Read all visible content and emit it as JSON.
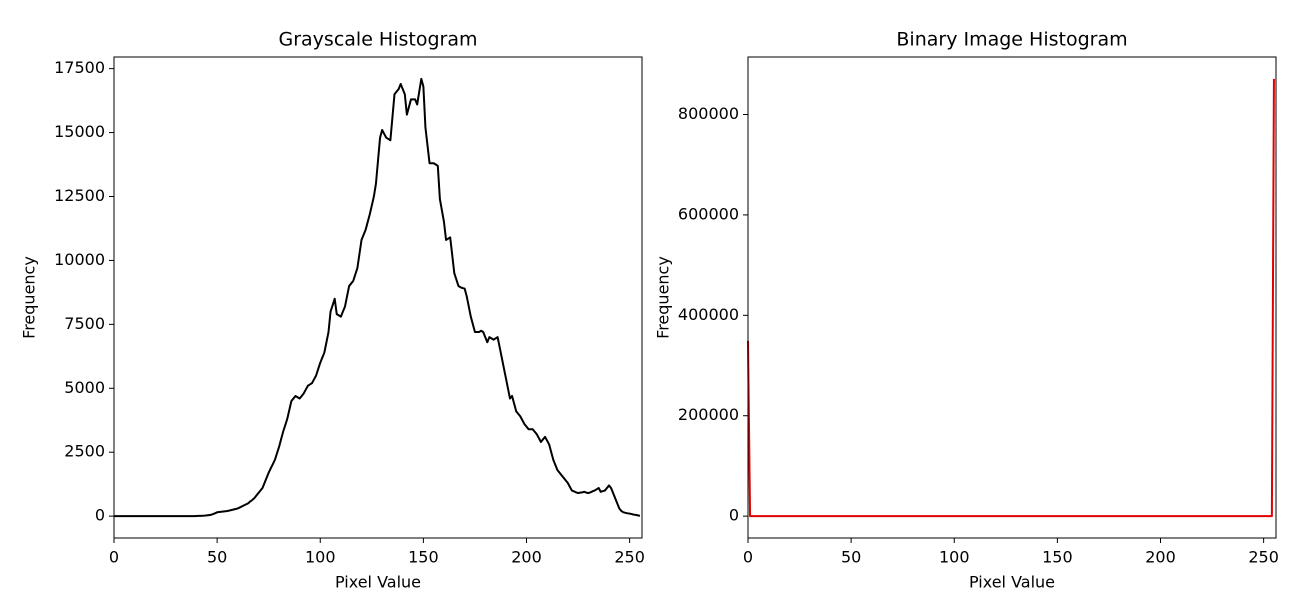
{
  "chart_data": [
    {
      "type": "line",
      "title": "Grayscale Histogram",
      "xlabel": "Pixel Value",
      "ylabel": "Frequency",
      "xlim": [
        0,
        256
      ],
      "ylim": [
        -855,
        17955
      ],
      "xticks": [
        0,
        50,
        100,
        150,
        200,
        250
      ],
      "yticks": [
        0,
        2500,
        5000,
        7500,
        10000,
        12500,
        15000,
        17500
      ],
      "x": [
        0,
        1,
        2,
        3,
        4,
        5,
        6,
        7,
        8,
        9,
        10,
        11,
        12,
        13,
        14,
        15,
        16,
        17,
        18,
        19,
        20,
        21,
        22,
        23,
        24,
        25,
        26,
        27,
        28,
        29,
        30,
        31,
        32,
        33,
        34,
        35,
        36,
        37,
        38,
        39,
        40,
        41,
        42,
        43,
        44,
        45,
        46,
        47,
        48,
        49,
        50,
        51,
        52,
        53,
        54,
        55,
        56,
        57,
        58,
        59,
        60,
        61,
        62,
        63,
        64,
        65,
        66,
        67,
        68,
        69,
        70,
        71,
        72,
        73,
        74,
        75,
        76,
        77,
        78,
        79,
        80,
        81,
        82,
        83,
        84,
        85,
        86,
        87,
        88,
        89,
        90,
        91,
        92,
        93,
        94,
        95,
        96,
        97,
        98,
        99,
        100,
        101,
        102,
        103,
        104,
        105,
        106,
        107,
        108,
        109,
        110,
        111,
        112,
        113,
        114,
        115,
        116,
        117,
        118,
        119,
        120,
        121,
        122,
        123,
        124,
        125,
        126,
        127,
        128,
        129,
        130,
        131,
        132,
        133,
        134,
        135,
        136,
        137,
        138,
        139,
        140,
        141,
        142,
        143,
        144,
        145,
        146,
        147,
        148,
        149,
        150,
        151,
        152,
        153,
        154,
        155,
        156,
        157,
        158,
        159,
        160,
        161,
        162,
        163,
        164,
        165,
        166,
        167,
        168,
        169,
        170,
        171,
        172,
        173,
        174,
        175,
        176,
        177,
        178,
        179,
        180,
        181,
        182,
        183,
        184,
        185,
        186,
        187,
        188,
        189,
        190,
        191,
        192,
        193,
        194,
        195,
        196,
        197,
        198,
        199,
        200,
        201,
        202,
        203,
        204,
        205,
        206,
        207,
        208,
        209,
        210,
        211,
        212,
        213,
        214,
        215,
        216,
        217,
        218,
        219,
        220,
        221,
        222,
        223,
        224,
        225,
        226,
        227,
        228,
        229,
        230,
        231,
        232,
        233,
        234,
        235,
        236,
        237,
        238,
        239,
        240,
        241,
        242,
        243,
        244,
        245,
        246,
        247,
        248,
        249,
        250,
        251,
        252,
        253,
        254,
        255
      ],
      "series": [
        {
          "name": "Grayscale",
          "color": "#000000",
          "values": [
            0,
            0,
            0,
            0,
            0,
            0,
            0,
            0,
            0,
            0,
            0,
            0,
            0,
            0,
            0,
            0,
            0,
            0,
            0,
            0,
            0,
            0,
            0,
            0,
            0,
            0,
            0,
            0,
            0,
            0,
            0,
            0,
            0,
            0,
            0,
            0,
            0,
            0,
            0,
            0,
            5,
            8,
            10,
            15,
            20,
            30,
            40,
            50,
            80,
            110,
            150,
            160,
            170,
            180,
            190,
            200,
            220,
            240,
            260,
            280,
            300,
            340,
            380,
            420,
            460,
            500,
            570,
            630,
            700,
            800,
            900,
            1000,
            1100,
            1300,
            1500,
            1700,
            1870,
            2030,
            2200,
            2450,
            2700,
            3000,
            3300,
            3550,
            3800,
            4150,
            4500,
            4600,
            4700,
            4650,
            4600,
            4700,
            4800,
            4950,
            5100,
            5150,
            5200,
            5350,
            5500,
            5750,
            6000,
            6200,
            6400,
            6800,
            7200,
            8000,
            8250,
            8500,
            7900,
            7850,
            7800,
            8000,
            8200,
            8600,
            9000,
            9100,
            9200,
            9450,
            9700,
            10250,
            10800,
            11000,
            11200,
            11500,
            11800,
            12150,
            12500,
            13000,
            13900,
            14800,
            15100,
            14950,
            14800,
            14750,
            14700,
            15600,
            16500,
            16600,
            16700,
            16900,
            16700,
            16500,
            15700,
            16000,
            16300,
            16300,
            16300,
            16100,
            16600,
            17100,
            16800,
            15200,
            14500,
            13800,
            13800,
            13800,
            13750,
            13700,
            12400,
            11950,
            11500,
            10800,
            10850,
            10900,
            10200,
            9500,
            9250,
            9000,
            8950,
            8920,
            8900,
            8600,
            8200,
            7800,
            7500,
            7200,
            7200,
            7200,
            7250,
            7200,
            7000,
            6800,
            7000,
            6950,
            6900,
            6950,
            7000,
            6600,
            6200,
            5800,
            5400,
            5000,
            4600,
            4700,
            4400,
            4100,
            4000,
            3900,
            3750,
            3600,
            3500,
            3400,
            3400,
            3400,
            3300,
            3200,
            3050,
            2900,
            3000,
            3100,
            2950,
            2800,
            2500,
            2200,
            2000,
            1800,
            1700,
            1600,
            1500,
            1400,
            1300,
            1150,
            1000,
            970,
            930,
            900,
            920,
            930,
            950,
            920,
            900,
            930,
            970,
            1000,
            1050,
            1100,
            950,
            980,
            1000,
            1100,
            1200,
            1100,
            900,
            700,
            500,
            300,
            200,
            150,
            130,
            110,
            100,
            80,
            60,
            50,
            30,
            10
          ]
        }
      ]
    },
    {
      "type": "line",
      "title": "Binary Image Histogram",
      "xlabel": "Pixel Value",
      "ylabel": "Frequency",
      "xlim": [
        0,
        256
      ],
      "ylim": [
        -43550,
        914550
      ],
      "xticks": [
        0,
        50,
        100,
        150,
        200,
        250
      ],
      "yticks": [
        0,
        200000,
        400000,
        600000,
        800000
      ],
      "x": [
        0,
        1,
        2,
        3,
        4,
        5,
        6,
        7,
        8,
        9,
        10,
        11,
        12,
        13,
        14,
        15,
        16,
        17,
        18,
        19,
        20,
        21,
        22,
        23,
        24,
        25,
        26,
        27,
        28,
        29,
        30,
        31,
        32,
        33,
        34,
        35,
        36,
        37,
        38,
        39,
        40,
        41,
        42,
        43,
        44,
        45,
        46,
        47,
        48,
        49,
        50,
        51,
        52,
        53,
        54,
        55,
        56,
        57,
        58,
        59,
        60,
        61,
        62,
        63,
        64,
        65,
        66,
        67,
        68,
        69,
        70,
        71,
        72,
        73,
        74,
        75,
        76,
        77,
        78,
        79,
        80,
        81,
        82,
        83,
        84,
        85,
        86,
        87,
        88,
        89,
        90,
        91,
        92,
        93,
        94,
        95,
        96,
        97,
        98,
        99,
        100,
        101,
        102,
        103,
        104,
        105,
        106,
        107,
        108,
        109,
        110,
        111,
        112,
        113,
        114,
        115,
        116,
        117,
        118,
        119,
        120,
        121,
        122,
        123,
        124,
        125,
        126,
        127,
        128,
        129,
        130,
        131,
        132,
        133,
        134,
        135,
        136,
        137,
        138,
        139,
        140,
        141,
        142,
        143,
        144,
        145,
        146,
        147,
        148,
        149,
        150,
        151,
        152,
        153,
        154,
        155,
        156,
        157,
        158,
        159,
        160,
        161,
        162,
        163,
        164,
        165,
        166,
        167,
        168,
        169,
        170,
        171,
        172,
        173,
        174,
        175,
        176,
        177,
        178,
        179,
        180,
        181,
        182,
        183,
        184,
        185,
        186,
        187,
        188,
        189,
        190,
        191,
        192,
        193,
        194,
        195,
        196,
        197,
        198,
        199,
        200,
        201,
        202,
        203,
        204,
        205,
        206,
        207,
        208,
        209,
        210,
        211,
        212,
        213,
        214,
        215,
        216,
        217,
        218,
        219,
        220,
        221,
        222,
        223,
        224,
        225,
        226,
        227,
        228,
        229,
        230,
        231,
        232,
        233,
        234,
        235,
        236,
        237,
        238,
        239,
        240,
        241,
        242,
        243,
        244,
        245,
        246,
        247,
        248,
        249,
        250,
        251,
        252,
        253,
        254,
        255
      ],
      "series": [
        {
          "name": "Binary",
          "color": "#e00000",
          "values": [
            349000,
            0,
            0,
            0,
            0,
            0,
            0,
            0,
            0,
            0,
            0,
            0,
            0,
            0,
            0,
            0,
            0,
            0,
            0,
            0,
            0,
            0,
            0,
            0,
            0,
            0,
            0,
            0,
            0,
            0,
            0,
            0,
            0,
            0,
            0,
            0,
            0,
            0,
            0,
            0,
            0,
            0,
            0,
            0,
            0,
            0,
            0,
            0,
            0,
            0,
            0,
            0,
            0,
            0,
            0,
            0,
            0,
            0,
            0,
            0,
            0,
            0,
            0,
            0,
            0,
            0,
            0,
            0,
            0,
            0,
            0,
            0,
            0,
            0,
            0,
            0,
            0,
            0,
            0,
            0,
            0,
            0,
            0,
            0,
            0,
            0,
            0,
            0,
            0,
            0,
            0,
            0,
            0,
            0,
            0,
            0,
            0,
            0,
            0,
            0,
            0,
            0,
            0,
            0,
            0,
            0,
            0,
            0,
            0,
            0,
            0,
            0,
            0,
            0,
            0,
            0,
            0,
            0,
            0,
            0,
            0,
            0,
            0,
            0,
            0,
            0,
            0,
            0,
            0,
            0,
            0,
            0,
            0,
            0,
            0,
            0,
            0,
            0,
            0,
            0,
            0,
            0,
            0,
            0,
            0,
            0,
            0,
            0,
            0,
            0,
            0,
            0,
            0,
            0,
            0,
            0,
            0,
            0,
            0,
            0,
            0,
            0,
            0,
            0,
            0,
            0,
            0,
            0,
            0,
            0,
            0,
            0,
            0,
            0,
            0,
            0,
            0,
            0,
            0,
            0,
            0,
            0,
            0,
            0,
            0,
            0,
            0,
            0,
            0,
            0,
            0,
            0,
            0,
            0,
            0,
            0,
            0,
            0,
            0,
            0,
            0,
            0,
            0,
            0,
            0,
            0,
            0,
            0,
            0,
            0,
            0,
            0,
            0,
            0,
            0,
            0,
            0,
            0,
            0,
            0,
            0,
            0,
            0,
            0,
            0,
            0,
            0,
            0,
            0,
            0,
            0,
            0,
            0,
            0,
            0,
            0,
            0,
            0,
            0,
            0,
            0,
            0,
            0,
            0,
            0,
            0,
            0,
            0,
            0,
            0,
            0,
            0,
            0,
            0,
            0,
            871000
          ]
        }
      ]
    }
  ]
}
